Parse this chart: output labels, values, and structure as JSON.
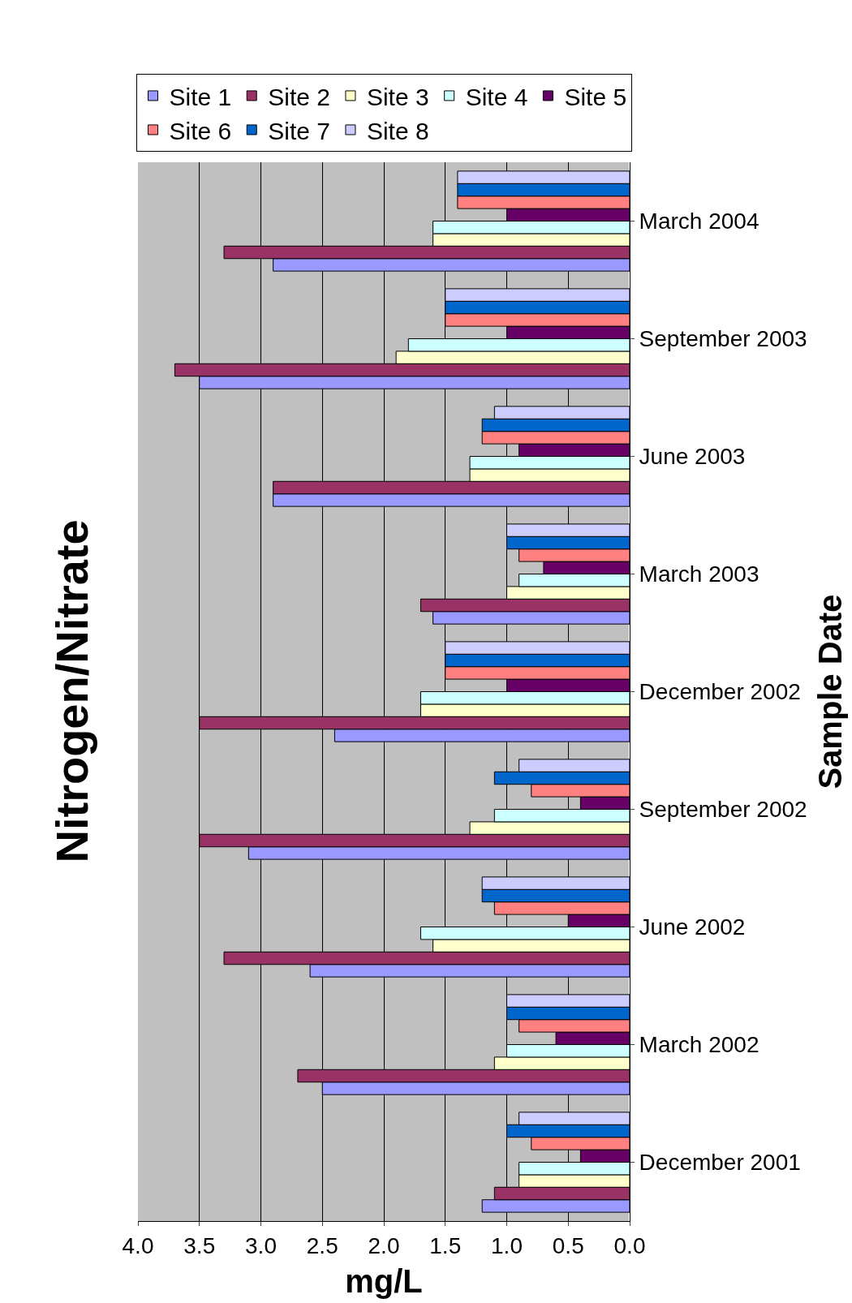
{
  "chart_data": {
    "type": "bar",
    "orientation": "horizontal",
    "title": "Nitrogen/Nitrate",
    "xlabel": "mg/L",
    "ylabel": "Sample Date",
    "categories": [
      "March 2004",
      "September 2003",
      "June 2003",
      "March 2003",
      "December 2002",
      "September 2002",
      "June 2002",
      "March 2002",
      "December 2001"
    ],
    "xlim": [
      4.0,
      0.0
    ],
    "xticks": [
      {
        "value": 4,
        "label": "4.0"
      },
      {
        "value": 3.5,
        "label": "3.5"
      },
      {
        "value": 3,
        "label": "3.0"
      },
      {
        "value": 2.5,
        "label": "2.5"
      },
      {
        "value": 2,
        "label": "2.0"
      },
      {
        "value": 1.5,
        "label": "1.5"
      },
      {
        "value": 1,
        "label": "1.0"
      },
      {
        "value": 0.5,
        "label": "0.5"
      },
      {
        "value": 0,
        "label": "0.0"
      }
    ],
    "grid": "x",
    "legend": "top",
    "series": [
      {
        "name": "Site 1",
        "color": "#9999ff",
        "values": [
          2.9,
          3.5,
          2.9,
          1.6,
          2.4,
          3.1,
          2.6,
          2.5,
          1.2
        ]
      },
      {
        "name": "Site 2",
        "color": "#993366",
        "values": [
          3.3,
          3.7,
          2.9,
          1.7,
          3.5,
          3.5,
          3.3,
          2.7,
          1.1
        ]
      },
      {
        "name": "Site 3",
        "color": "#ffffcc",
        "values": [
          1.6,
          1.9,
          1.3,
          1.0,
          1.7,
          1.3,
          1.6,
          1.1,
          0.9
        ]
      },
      {
        "name": "Site 4",
        "color": "#ccffff",
        "values": [
          1.6,
          1.8,
          1.3,
          0.9,
          1.7,
          1.1,
          1.7,
          1.0,
          0.9
        ]
      },
      {
        "name": "Site 5",
        "color": "#660066",
        "values": [
          1.0,
          1.0,
          0.9,
          0.7,
          1.0,
          0.4,
          0.5,
          0.6,
          0.4
        ]
      },
      {
        "name": "Site 6",
        "color": "#ff8080",
        "values": [
          1.4,
          1.5,
          1.2,
          0.9,
          1.5,
          0.8,
          1.1,
          0.9,
          0.8
        ]
      },
      {
        "name": "Site 7",
        "color": "#0066cc",
        "values": [
          1.4,
          1.5,
          1.2,
          1.0,
          1.5,
          1.1,
          1.2,
          1.0,
          1.0
        ]
      },
      {
        "name": "Site 8",
        "color": "#ccccff",
        "values": [
          1.4,
          1.5,
          1.1,
          1.0,
          1.5,
          0.9,
          1.2,
          1.0,
          0.9
        ]
      }
    ]
  }
}
